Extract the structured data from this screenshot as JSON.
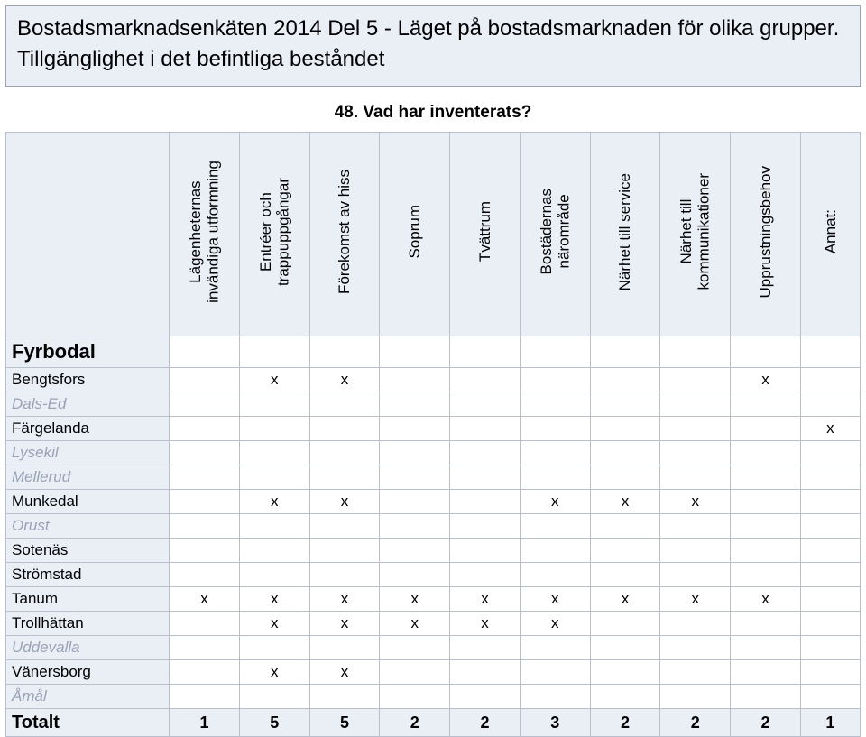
{
  "title": {
    "line1": "Bostadsmarknadsenkäten 2014 Del 5 - Läget på bostadsmarknaden för olika grupper.",
    "line2": "Tillgänglighet i det befintliga beståndet"
  },
  "subtitle": "48. Vad har inventerats?",
  "columns": [
    "Lägenheternas\ninvändiga utformning",
    "Entréer och\ntrappuppgångar",
    "Förekomst av hiss",
    "Soprum",
    "Tvättrum",
    "Bostädernas\nnärområde",
    "Närhet till service",
    "Närhet till\nkommunikationer",
    "Upprustningsbehov",
    "Annat:"
  ],
  "region": "Fyrbodal",
  "rows": [
    {
      "label": "Bengtsfors",
      "inactive": false,
      "cells": [
        "",
        "x",
        "x",
        "",
        "",
        "",
        "",
        "",
        "x",
        ""
      ]
    },
    {
      "label": "Dals-Ed",
      "inactive": true,
      "cells": [
        "",
        "",
        "",
        "",
        "",
        "",
        "",
        "",
        "",
        ""
      ]
    },
    {
      "label": "Färgelanda",
      "inactive": false,
      "cells": [
        "",
        "",
        "",
        "",
        "",
        "",
        "",
        "",
        "",
        "x"
      ]
    },
    {
      "label": "Lysekil",
      "inactive": true,
      "cells": [
        "",
        "",
        "",
        "",
        "",
        "",
        "",
        "",
        "",
        ""
      ]
    },
    {
      "label": "Mellerud",
      "inactive": true,
      "cells": [
        "",
        "",
        "",
        "",
        "",
        "",
        "",
        "",
        "",
        ""
      ]
    },
    {
      "label": "Munkedal",
      "inactive": false,
      "cells": [
        "",
        "x",
        "x",
        "",
        "",
        "x",
        "x",
        "x",
        "",
        ""
      ]
    },
    {
      "label": "Orust",
      "inactive": true,
      "cells": [
        "",
        "",
        "",
        "",
        "",
        "",
        "",
        "",
        "",
        ""
      ]
    },
    {
      "label": "Sotenäs",
      "inactive": false,
      "cells": [
        "",
        "",
        "",
        "",
        "",
        "",
        "",
        "",
        "",
        ""
      ]
    },
    {
      "label": "Strömstad",
      "inactive": false,
      "cells": [
        "",
        "",
        "",
        "",
        "",
        "",
        "",
        "",
        "",
        ""
      ]
    },
    {
      "label": "Tanum",
      "inactive": false,
      "cells": [
        "x",
        "x",
        "x",
        "x",
        "x",
        "x",
        "x",
        "x",
        "x",
        ""
      ]
    },
    {
      "label": "Trollhättan",
      "inactive": false,
      "cells": [
        "",
        "x",
        "x",
        "x",
        "x",
        "x",
        "",
        "",
        "",
        ""
      ]
    },
    {
      "label": "Uddevalla",
      "inactive": true,
      "cells": [
        "",
        "",
        "",
        "",
        "",
        "",
        "",
        "",
        "",
        ""
      ]
    },
    {
      "label": "Vänersborg",
      "inactive": false,
      "cells": [
        "",
        "x",
        "x",
        "",
        "",
        "",
        "",
        "",
        "",
        ""
      ]
    },
    {
      "label": "Åmål",
      "inactive": true,
      "cells": [
        "",
        "",
        "",
        "",
        "",
        "",
        "",
        "",
        "",
        ""
      ]
    }
  ],
  "total": {
    "label": "Totalt",
    "cells": [
      "1",
      "5",
      "5",
      "2",
      "2",
      "3",
      "2",
      "2",
      "2",
      "1"
    ]
  },
  "colors": {
    "panel_bg": "#e9eff5",
    "border": "#b8bfcf",
    "inactive_text": "#9aa2b8"
  }
}
